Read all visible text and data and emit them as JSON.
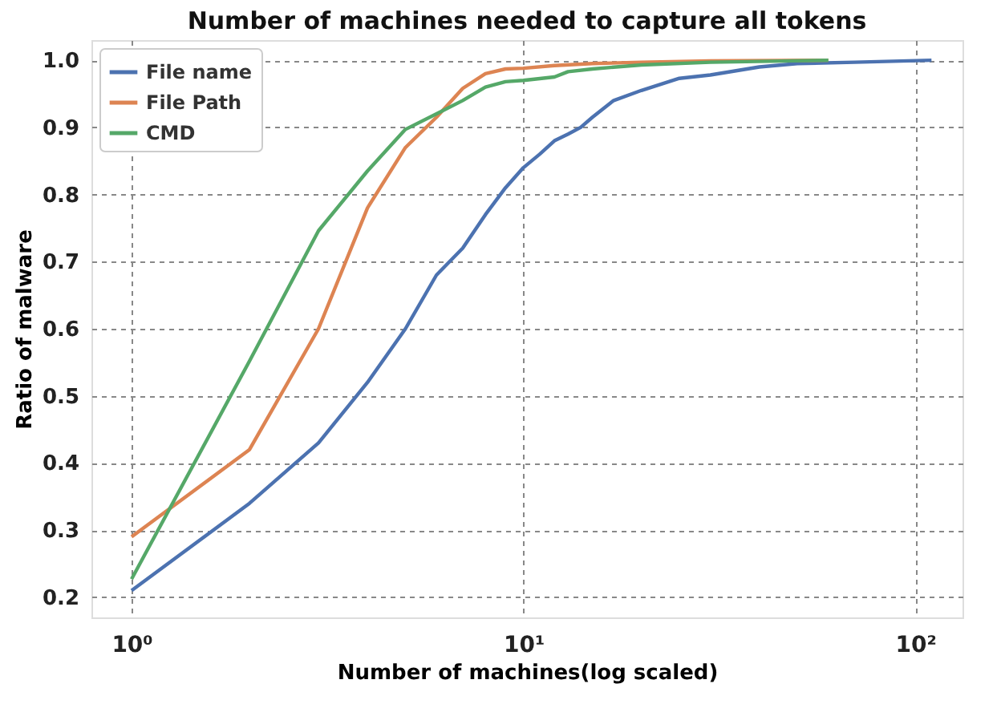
{
  "chart_data": {
    "type": "line",
    "title": "Number of machines needed to capture all tokens",
    "xlabel": "Number of machines(log scaled)",
    "ylabel": "Ratio of malware",
    "log": "x",
    "xlim": [
      0.79,
      132
    ],
    "xticks": [
      {
        "value": 1,
        "label": "10⁰"
      },
      {
        "value": 10,
        "label": "10¹"
      },
      {
        "value": 100,
        "label": "10²"
      }
    ],
    "ylim": [
      0.17,
      1.03
    ],
    "yticks": [
      0.2,
      0.3,
      0.4,
      0.5,
      0.6,
      0.7,
      0.8,
      0.9,
      {
        "value": 1,
        "label": "1.0"
      }
    ],
    "grid": true,
    "legend": "top left",
    "line_style": "solid",
    "marker": "none",
    "series": [
      {
        "name": "File name",
        "color": "#4c72b0",
        "x": [
          1,
          2,
          3,
          4,
          5,
          6,
          7,
          8,
          9,
          10,
          11,
          12,
          13,
          14,
          15,
          17,
          20,
          25,
          30,
          40,
          50,
          70,
          110
        ],
        "values": [
          0.21,
          0.34,
          0.43,
          0.52,
          0.6,
          0.68,
          0.72,
          0.77,
          0.81,
          0.84,
          0.86,
          0.88,
          0.89,
          0.9,
          0.915,
          0.94,
          0.955,
          0.973,
          0.978,
          0.99,
          0.995,
          0.997,
          1.0
        ]
      },
      {
        "name": "File Path",
        "color": "#dd8452",
        "x": [
          1,
          2,
          3,
          4,
          5,
          6,
          7,
          8,
          9,
          10,
          12,
          15,
          20,
          30,
          60
        ],
        "values": [
          0.29,
          0.42,
          0.6,
          0.78,
          0.87,
          0.915,
          0.958,
          0.98,
          0.987,
          0.988,
          0.992,
          0.995,
          0.997,
          0.999,
          1.0
        ]
      },
      {
        "name": "CMD",
        "color": "#55a868",
        "x": [
          1,
          2,
          3,
          4,
          5,
          6,
          7,
          8,
          9,
          10,
          12,
          13,
          15,
          20,
          30,
          60
        ],
        "values": [
          0.227,
          0.552,
          0.746,
          0.835,
          0.897,
          0.92,
          0.94,
          0.96,
          0.968,
          0.97,
          0.975,
          0.983,
          0.987,
          0.993,
          0.997,
          1.0
        ]
      }
    ]
  }
}
